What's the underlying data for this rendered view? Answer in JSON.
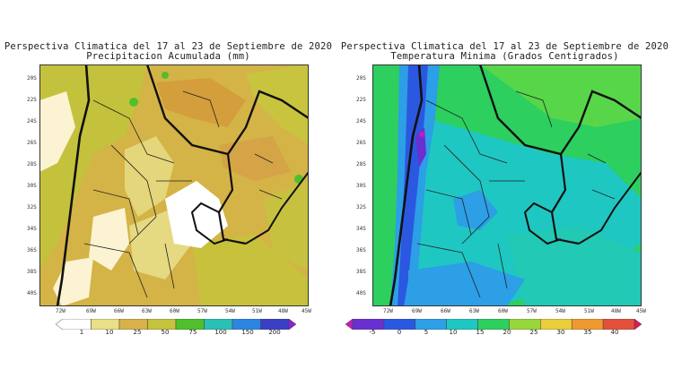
{
  "panels": {
    "left": {
      "title_line1": "Perspectiva Climatica del 17 al 23 de Septiembre de 2020",
      "title_line2": "Precipitacion Acumulada (mm)",
      "lat_labels": [
        "20S",
        "22S",
        "24S",
        "26S",
        "28S",
        "30S",
        "32S",
        "34S",
        "36S",
        "38S",
        "40S"
      ],
      "lon_labels": [
        "72W",
        "69W",
        "66W",
        "63W",
        "60W",
        "57W",
        "54W",
        "51W",
        "48W",
        "45W"
      ],
      "colorbar_labels": [
        "1",
        "10",
        "25",
        "50",
        "75",
        "100",
        "150",
        "200"
      ],
      "colorbar_colors": [
        "#ffffff",
        "#e9df86",
        "#d8b14a",
        "#c6c23d",
        "#4fbf2c",
        "#29c1b6",
        "#2c85e0",
        "#3a3fc6",
        "#8a22d6"
      ]
    },
    "right": {
      "title_line1": "Perspectiva Climatica del 17 al 23 de Septiembre de 2020",
      "title_line2": "Temperatura Minima (Grados Centigrados)",
      "lat_labels": [
        "20S",
        "22S",
        "24S",
        "26S",
        "28S",
        "30S",
        "32S",
        "34S",
        "36S",
        "38S",
        "40S"
      ],
      "lon_labels": [
        "72W",
        "69W",
        "66W",
        "63W",
        "60W",
        "57W",
        "54W",
        "51W",
        "48W",
        "45W"
      ],
      "colorbar_labels": [
        "-5",
        "0",
        "5",
        "10",
        "15",
        "20",
        "25",
        "30",
        "35",
        "40"
      ],
      "colorbar_colors": [
        "#c21fb6",
        "#6a2fd0",
        "#2b58e0",
        "#2c9fe6",
        "#1fc7c2",
        "#2dcf5e",
        "#97d63b",
        "#e8cf3a",
        "#ef9a2e",
        "#e4503a",
        "#d8195e"
      ]
    }
  }
}
